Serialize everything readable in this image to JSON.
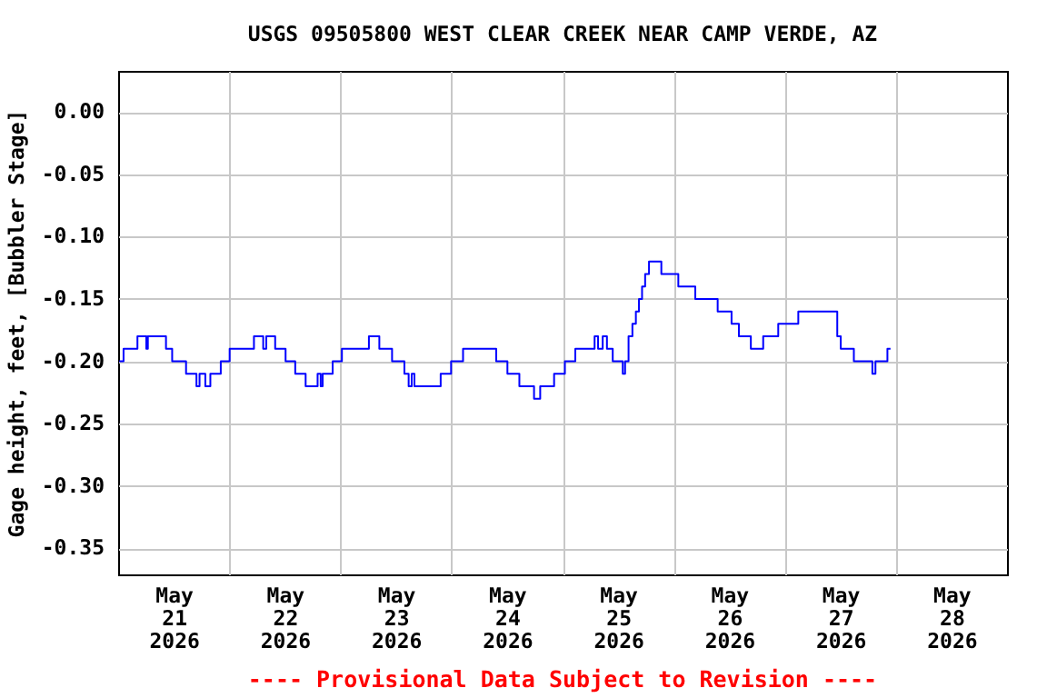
{
  "chart_data": {
    "type": "step",
    "title": "USGS 09505800 WEST CLEAR CREEK NEAR CAMP VERDE, AZ",
    "ylabel": "Gage height, feet, [Bubbler Stage]",
    "annotations": [
      "---- Provisional Data Subject to Revision ----"
    ],
    "x": [
      "2026-05-21T00:15",
      "2026-05-21T01:10",
      "2026-05-21T04:10",
      "2026-05-21T06:05",
      "2026-05-21T06:25",
      "2026-05-21T10:20",
      "2026-05-21T11:40",
      "2026-05-21T14:40",
      "2026-05-21T16:55",
      "2026-05-21T17:35",
      "2026-05-21T18:50",
      "2026-05-21T19:55",
      "2026-05-21T22:10",
      "2026-05-22T00:05",
      "2026-05-22T05:20",
      "2026-05-22T07:20",
      "2026-05-22T08:00",
      "2026-05-22T09:55",
      "2026-05-22T12:10",
      "2026-05-22T14:15",
      "2026-05-22T16:30",
      "2026-05-22T19:05",
      "2026-05-22T19:45",
      "2026-05-22T20:10",
      "2026-05-22T22:20",
      "2026-05-23T00:20",
      "2026-05-23T06:10",
      "2026-05-23T08:25",
      "2026-05-23T11:10",
      "2026-05-23T13:50",
      "2026-05-23T14:45",
      "2026-05-23T15:25",
      "2026-05-23T16:00",
      "2026-05-23T21:40",
      "2026-05-23T23:55",
      "2026-05-24T02:30",
      "2026-05-24T09:40",
      "2026-05-24T12:05",
      "2026-05-24T14:40",
      "2026-05-24T17:50",
      "2026-05-24T19:10",
      "2026-05-24T22:10",
      "2026-05-25T00:30",
      "2026-05-25T02:45",
      "2026-05-25T06:55",
      "2026-05-25T07:40",
      "2026-05-25T08:40",
      "2026-05-25T09:35",
      "2026-05-25T10:50",
      "2026-05-25T13:00",
      "2026-05-25T13:30",
      "2026-05-25T14:15",
      "2026-05-25T15:05",
      "2026-05-25T15:50",
      "2026-05-25T16:30",
      "2026-05-25T17:10",
      "2026-05-25T17:50",
      "2026-05-25T18:40",
      "2026-05-25T21:20",
      "2026-05-26T01:00",
      "2026-05-26T04:40",
      "2026-05-26T09:30",
      "2026-05-26T12:30",
      "2026-05-26T14:05",
      "2026-05-26T16:40",
      "2026-05-26T19:20",
      "2026-05-26T22:35",
      "2026-05-27T02:55",
      "2026-05-27T11:20",
      "2026-05-27T12:05",
      "2026-05-27T14:55",
      "2026-05-27T18:55",
      "2026-05-27T19:35",
      "2026-05-27T22:10",
      "2026-05-27T22:50"
    ],
    "series": [
      {
        "color": "#0000ff",
        "values": [
          -0.2,
          -0.19,
          -0.18,
          -0.19,
          -0.18,
          -0.19,
          -0.2,
          -0.21,
          -0.22,
          -0.21,
          -0.22,
          -0.21,
          -0.2,
          -0.19,
          -0.18,
          -0.19,
          -0.18,
          -0.19,
          -0.2,
          -0.21,
          -0.22,
          -0.21,
          -0.22,
          -0.21,
          -0.2,
          -0.19,
          -0.18,
          -0.19,
          -0.2,
          -0.21,
          -0.22,
          -0.21,
          -0.22,
          -0.21,
          -0.2,
          -0.19,
          -0.2,
          -0.21,
          -0.22,
          -0.23,
          -0.22,
          -0.21,
          -0.2,
          -0.19,
          -0.18,
          -0.19,
          -0.18,
          -0.19,
          -0.2,
          -0.21,
          -0.2,
          -0.18,
          -0.17,
          -0.16,
          -0.15,
          -0.14,
          -0.13,
          -0.12,
          -0.13,
          -0.14,
          -0.15,
          -0.16,
          -0.17,
          -0.18,
          -0.19,
          -0.18,
          -0.17,
          -0.16,
          -0.18,
          -0.19,
          -0.2,
          -0.21,
          -0.2,
          -0.19,
          -0.19
        ]
      }
    ],
    "xlim": [
      "2026-05-21T00:00",
      "2026-05-29T00:00"
    ],
    "xticks": [
      {
        "value": "2026-05-21T12:00",
        "label": "May\n21\n2026"
      },
      {
        "value": "2026-05-22T12:00",
        "label": "May\n22\n2026"
      },
      {
        "value": "2026-05-23T12:00",
        "label": "May\n23\n2026"
      },
      {
        "value": "2026-05-24T12:00",
        "label": "May\n24\n2026"
      },
      {
        "value": "2026-05-25T12:00",
        "label": "May\n25\n2026"
      },
      {
        "value": "2026-05-26T12:00",
        "label": "May\n26\n2026"
      },
      {
        "value": "2026-05-27T12:00",
        "label": "May\n27\n2026"
      },
      {
        "value": "2026-05-28T12:00",
        "label": "May\n28\n2026"
      },
      {
        "value": "2026-05-22T00:00",
        "label": null
      },
      {
        "value": "2026-05-23T00:00",
        "label": null
      },
      {
        "value": "2026-05-24T00:00",
        "label": null
      },
      {
        "value": "2026-05-25T00:00",
        "label": null
      },
      {
        "value": "2026-05-26T00:00",
        "label": null
      },
      {
        "value": "2026-05-27T00:00",
        "label": null
      },
      {
        "value": "2026-05-28T00:00",
        "label": null
      }
    ],
    "ylim": [
      -0.371,
      0.033
    ],
    "yticks": [
      {
        "value": 0,
        "label": "0.00"
      },
      {
        "value": -0.05,
        "label": "-0.05"
      },
      {
        "value": -0.1,
        "label": "-0.10"
      },
      {
        "value": -0.15,
        "label": "-0.15"
      },
      {
        "value": -0.2,
        "label": "-0.20"
      },
      {
        "value": -0.25,
        "label": "-0.25"
      },
      {
        "value": -0.3,
        "label": "-0.30"
      },
      {
        "value": -0.35,
        "label": "-0.35"
      }
    ],
    "grid": true,
    "marker": "none",
    "line_style": "solid"
  }
}
